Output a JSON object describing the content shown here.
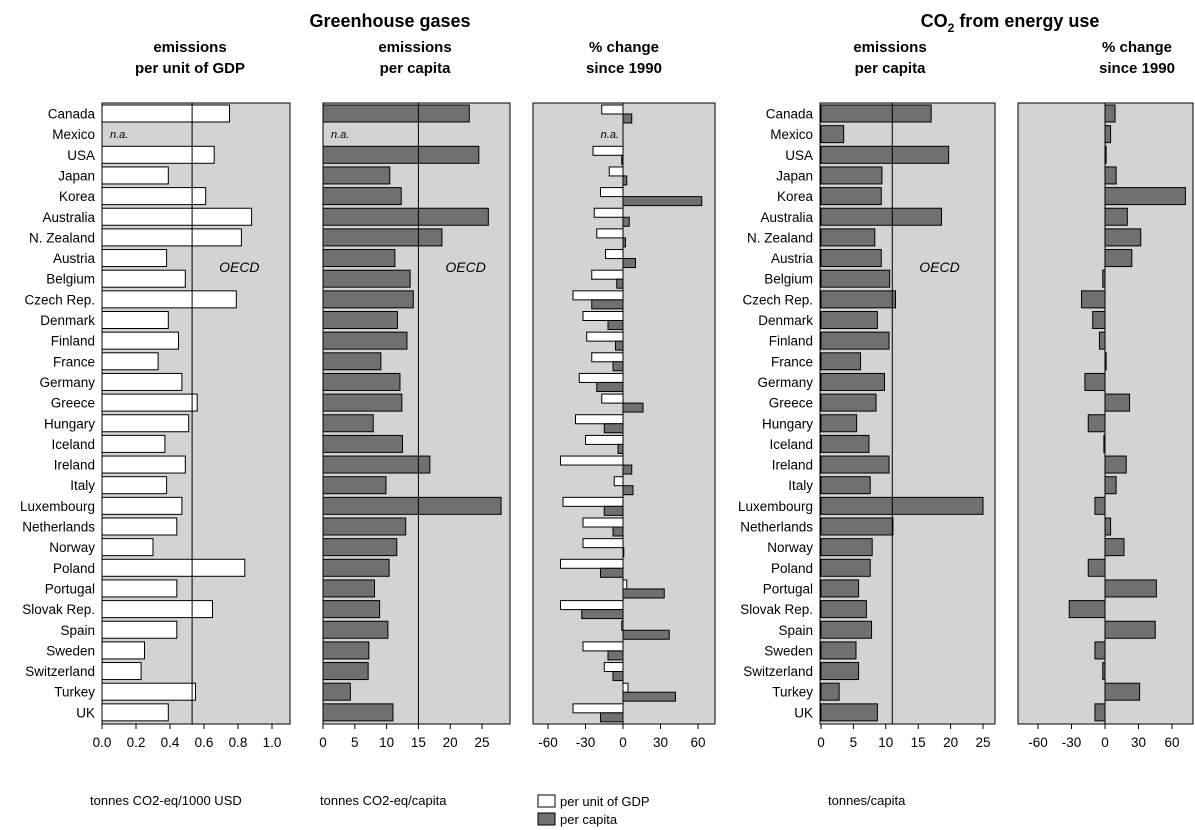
{
  "figure": {
    "group_titles": {
      "ghg": "Greenhouse gases",
      "co2_main": "CO",
      "co2_sub": "2",
      "co2_rest": " from energy use"
    },
    "countries": [
      "Canada",
      "Mexico",
      "USA",
      "Japan",
      "Korea",
      "Australia",
      "N. Zealand",
      "Austria",
      "Belgium",
      "Czech Rep.",
      "Denmark",
      "Finland",
      "France",
      "Germany",
      "Greece",
      "Hungary",
      "Iceland",
      "Ireland",
      "Italy",
      "Luxembourg",
      "Netherlands",
      "Norway",
      "Poland",
      "Portugal",
      "Slovak Rep.",
      "Spain",
      "Sweden",
      "Switzerland",
      "Turkey",
      "UK"
    ],
    "na_label": "n.a.",
    "oecd_label": "OECD",
    "legend": {
      "gdp": "per unit of GDP",
      "capita": "per capita"
    },
    "colors": {
      "panel_bg": "#d3d3d3",
      "gdp_bar": "#ffffff",
      "capita_bar": "#707070",
      "stroke": "#000000"
    }
  },
  "chart_data": [
    {
      "type": "bar",
      "orientation": "horizontal",
      "title": [
        "emissions",
        "per unit of GDP"
      ],
      "xlabel": "tonnes CO2-eq/1000 USD",
      "xlim": [
        0,
        1.0
      ],
      "ticks": [
        "0.0",
        "0.2",
        "0.4",
        "0.6",
        "0.8",
        "1.0"
      ],
      "reference": {
        "label": "OECD",
        "value": 0.53
      },
      "series": [
        {
          "name": "per unit of GDP",
          "values": [
            0.75,
            null,
            0.66,
            0.39,
            0.61,
            0.88,
            0.82,
            0.38,
            0.49,
            0.79,
            0.39,
            0.45,
            0.33,
            0.47,
            0.56,
            0.51,
            0.37,
            0.49,
            0.38,
            0.47,
            0.44,
            0.3,
            0.84,
            0.44,
            0.65,
            0.44,
            0.25,
            0.23,
            0.55,
            0.39
          ]
        }
      ]
    },
    {
      "type": "bar",
      "orientation": "horizontal",
      "title": [
        "emissions",
        "per capita"
      ],
      "xlabel": "tonnes CO2-eq/capita",
      "xlim": [
        0,
        28
      ],
      "ticks": [
        "0",
        "5",
        "10",
        "15",
        "20",
        "25"
      ],
      "reference": {
        "label": "OECD",
        "value": 15
      },
      "series": [
        {
          "name": "per capita",
          "values": [
            23,
            null,
            24.5,
            10.5,
            12.3,
            26,
            18.7,
            11.3,
            13.7,
            14.2,
            11.7,
            13.2,
            9.1,
            12.1,
            12.4,
            7.9,
            12.5,
            16.8,
            9.9,
            28,
            13,
            11.6,
            10.4,
            8.1,
            8.9,
            10.2,
            7.2,
            7.1,
            4.3,
            11
          ]
        }
      ]
    },
    {
      "type": "bar",
      "orientation": "horizontal",
      "title": [
        "% change",
        "since 1990"
      ],
      "xlabel": "",
      "xlim": [
        -75,
        75
      ],
      "ticks": [
        "-60",
        "-30",
        "0",
        "30",
        "60"
      ],
      "series": [
        {
          "name": "per unit of GDP",
          "values": [
            -17,
            null,
            -24,
            -11,
            -18,
            -23,
            -21,
            -14,
            -25,
            -40,
            -32,
            -29,
            -25,
            -35,
            -17,
            -38,
            -30,
            -50,
            -7,
            -48,
            -32,
            -32,
            -50,
            3,
            -50,
            -1,
            -32,
            -15,
            4,
            -40
          ]
        },
        {
          "name": "per capita",
          "values": [
            7,
            null,
            -1,
            3,
            63,
            5,
            2,
            10,
            -5,
            -25,
            -12,
            -6,
            -8,
            -21,
            16,
            -15,
            -4,
            7,
            8,
            -15,
            -8,
            0,
            -18,
            33,
            -33,
            37,
            -12,
            -8,
            42,
            -18
          ]
        }
      ]
    },
    {
      "type": "bar",
      "orientation": "horizontal",
      "title": [
        "emissions",
        "per capita"
      ],
      "xlabel": "tonnes/capita",
      "xlim": [
        0,
        28
      ],
      "ticks": [
        "0",
        "5",
        "10",
        "15",
        "20",
        "25"
      ],
      "reference": {
        "label": "OECD",
        "value": 11
      },
      "series": [
        {
          "name": "per capita",
          "values": [
            17,
            3.5,
            19.7,
            9.4,
            9.3,
            18.6,
            8.3,
            9.3,
            10.6,
            11.5,
            8.7,
            10.5,
            6.1,
            9.8,
            8.5,
            5.5,
            7.4,
            10.5,
            7.6,
            25,
            11.1,
            7.9,
            7.6,
            5.8,
            7,
            7.8,
            5.4,
            5.8,
            2.8,
            8.7
          ]
        }
      ]
    },
    {
      "type": "bar",
      "orientation": "horizontal",
      "title": [
        "% change",
        "since 1990"
      ],
      "xlabel": "",
      "xlim": [
        -72,
        72
      ],
      "ticks": [
        "-60",
        "-30",
        "0",
        "30",
        "60"
      ],
      "series": [
        {
          "name": "per capita",
          "values": [
            9,
            5,
            1,
            10,
            72,
            20,
            32,
            24,
            -2,
            -21,
            -11,
            -5,
            1,
            -18,
            22,
            -15,
            -1,
            19,
            10,
            -9,
            5,
            17,
            -15,
            46,
            -32,
            45,
            -9,
            -2,
            31,
            -9
          ]
        }
      ]
    }
  ]
}
